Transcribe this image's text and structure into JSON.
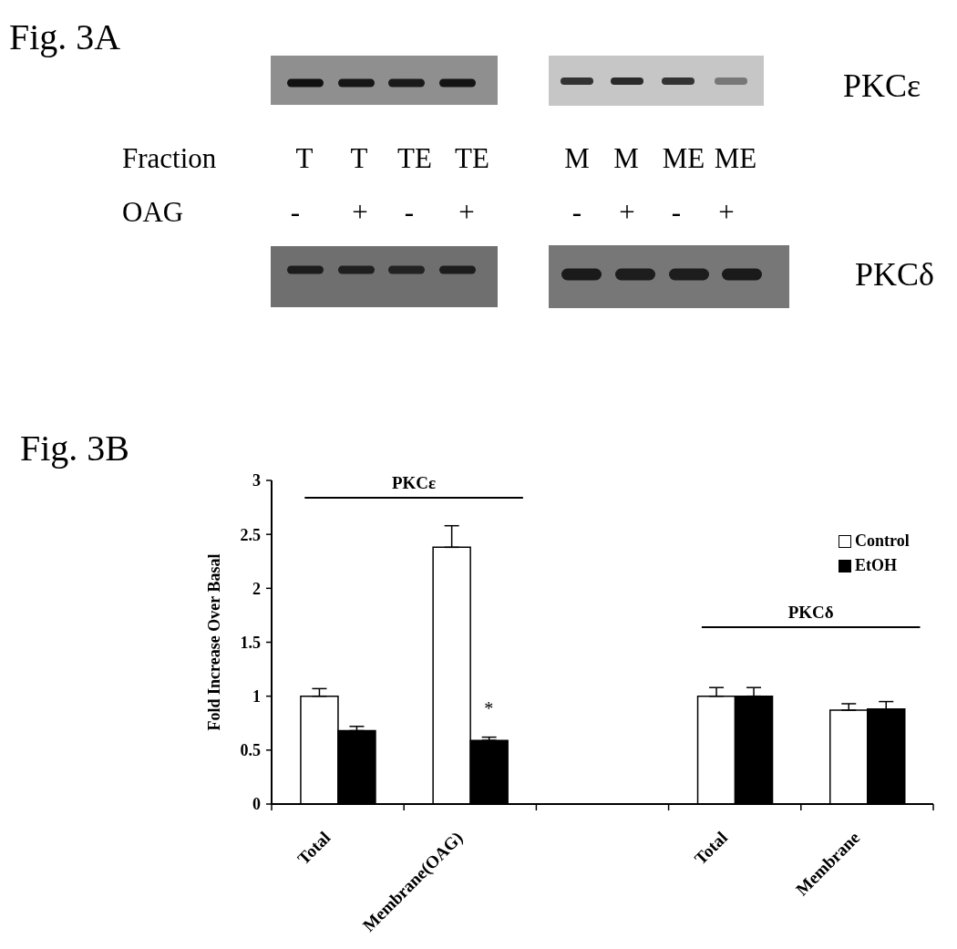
{
  "chart_data": [
    {
      "type": "other",
      "title": "Fig. 3A",
      "annotations": [
        "PKCε",
        "Fraction",
        "T",
        "T",
        "TE",
        "TE",
        "M",
        "M",
        "ME",
        "ME",
        "OAG",
        "-",
        "+",
        "-",
        "+",
        "-",
        "+",
        "-",
        "+",
        "PKCδ"
      ]
    },
    {
      "type": "bar",
      "title": "Fig. 3B",
      "ylabel": "Fold Increase Over Basal",
      "categories": [
        "Total",
        "Membrane(OAG)",
        null,
        "Total",
        "Membrane"
      ],
      "series": [
        {
          "name": "Control",
          "color": "#ffffff",
          "values": [
            1,
            2.38,
            null,
            1,
            0.87
          ],
          "errors": [
            [
              1,
              1.07
            ],
            [
              2.38,
              2.58
            ],
            null,
            [
              1,
              1.08
            ],
            [
              0.87,
              0.93
            ]
          ]
        },
        {
          "name": "EtOH",
          "color": "#000000",
          "values": [
            0.68,
            0.59,
            null,
            1,
            0.88
          ],
          "errors": [
            [
              0.68,
              0.72
            ],
            [
              0.59,
              0.62
            ],
            null,
            [
              1,
              1.08
            ],
            [
              0.88,
              0.95
            ]
          ]
        }
      ],
      "ylim": [
        0,
        3
      ],
      "yticks": [
        0,
        0.5,
        1,
        1.5,
        2,
        2.5,
        3
      ],
      "legend": "top right",
      "annotations": [
        "PKCε",
        "PKCδ",
        "*"
      ]
    }
  ]
}
